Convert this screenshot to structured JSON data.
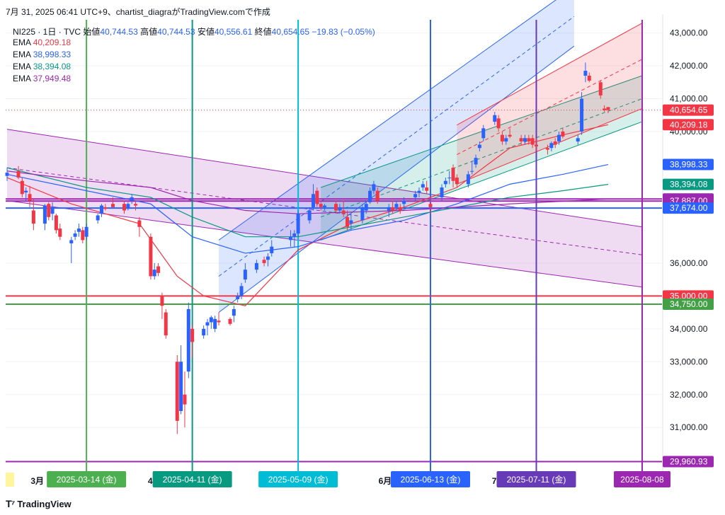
{
  "snapshot_header": "7月 31, 2025 06:41 UTC+9、chartist_diagraがTradingView.comで作成",
  "footer_brand": "TradingView",
  "legend": {
    "symbol": "NI225 · 1日 · TVC",
    "open_label": "始値",
    "open": "40,744.53",
    "high_label": "高値",
    "high": "40,744.53",
    "low_label": "安値",
    "low": "40,556.61",
    "close_label": "終値",
    "close": "40,654.65",
    "change": "−19.83 (−0.05%)",
    "ema": [
      {
        "label": "EMA",
        "value": "40,209.18",
        "color": "#f23645"
      },
      {
        "label": "EMA",
        "value": "38,998.33",
        "color": "#2962ff"
      },
      {
        "label": "EMA",
        "value": "38,394.08",
        "color": "#089981"
      },
      {
        "label": "EMA",
        "value": "37,949.48",
        "color": "#9c27b0"
      }
    ]
  },
  "colors": {
    "up": "#2962ff",
    "down": "#f23645",
    "grid": "#f0f3fa"
  },
  "chart_data": {
    "type": "candlestick",
    "x_start": "2025-02-21",
    "x_end": "2025-08-08",
    "y_axis_ticks": [
      "43,000.00",
      "42,000.00",
      "41,000.00",
      "40,000.00",
      "36,000.00",
      "35,000.00",
      "34,000.00",
      "33,000.00",
      "32,000.00",
      "31,000.00"
    ],
    "y_axis_tick_values": [
      43000,
      42000,
      41000,
      40000,
      36000,
      35000,
      34000,
      33000,
      32000,
      31000
    ],
    "ylim": [
      29800,
      43400
    ],
    "x_axis_labels": [
      {
        "date": "2025-03-01",
        "text": "3月"
      },
      {
        "date": "2025-04-01",
        "text": "4月"
      },
      {
        "date": "2025-06-01",
        "text": "6月"
      },
      {
        "date": "2025-07-01",
        "text": "7月"
      }
    ],
    "price_tags": [
      {
        "value": 40654.65,
        "text": "40,654.65",
        "color": "#f23645"
      },
      {
        "value": 40209.18,
        "text": "40,209.18",
        "color": "#f23645"
      },
      {
        "value": 38998.33,
        "text": "38,998.33",
        "color": "#2962ff"
      },
      {
        "value": 38394.08,
        "text": "38,394.08",
        "color": "#089981"
      },
      {
        "value": 37949.48,
        "text": "37,949.48",
        "color": "#9c27b0"
      },
      {
        "value": 37887.0,
        "text": "37,887.00",
        "color": "#9c27b0"
      },
      {
        "value": 37674.0,
        "text": "37,674.00",
        "color": "#2962ff"
      },
      {
        "value": 35000.0,
        "text": "35,000.00",
        "color": "#f23645"
      },
      {
        "value": 34750.0,
        "text": "34,750.00",
        "color": "#43a047"
      },
      {
        "value": 29960.93,
        "text": "29,960.93",
        "color": "#9c27b0"
      }
    ],
    "horizontal_lines": [
      {
        "value": 37949.48,
        "color": "#9c27b0"
      },
      {
        "value": 37887.0,
        "color": "#9c27b0"
      },
      {
        "value": 37674.0,
        "color": "#2962ff"
      },
      {
        "value": 35000.0,
        "color": "#f23645"
      },
      {
        "value": 34750.0,
        "color": "#43a047"
      },
      {
        "value": 29960.93,
        "color": "#9c27b0"
      }
    ],
    "vertical_lines": [
      {
        "date": "2025-03-14",
        "text": "2025-03-14 (金)",
        "color": "#4caf50"
      },
      {
        "date": "2025-04-11",
        "text": "2025-04-11 (金)",
        "color": "#089981"
      },
      {
        "date": "2025-05-09",
        "text": "2025-05-09 (金)",
        "color": "#00bcd4"
      },
      {
        "date": "2025-06-13",
        "text": "2025-06-13 (金)",
        "color": "#2962ff"
      },
      {
        "date": "2025-07-11",
        "text": "2025-07-11 (金)",
        "color": "#673ab7"
      },
      {
        "date": "2025-08-08",
        "text": "2025-08-08",
        "color": "#9c27b0"
      }
    ],
    "channels": [
      {
        "name": "purple",
        "color": "#9c27b0",
        "start": "2025-02-21",
        "end": "2025-08-08",
        "upper": [
          40070,
          37100
        ],
        "mid": [
          38900,
          36250
        ],
        "lower": [
          37900,
          35270
        ]
      },
      {
        "name": "blue",
        "color": "#2962ff",
        "start": "2025-04-18",
        "end": "2025-07-21",
        "upper": [
          36700,
          44400
        ],
        "mid": [
          35600,
          43500
        ],
        "lower": [
          34500,
          42600
        ]
      },
      {
        "name": "green",
        "color": "#089981",
        "start": "2025-05-15",
        "end": "2025-08-08",
        "upper": [
          38300,
          41700
        ],
        "mid": [
          37400,
          41000
        ],
        "lower": [
          36700,
          40300
        ]
      },
      {
        "name": "red",
        "color": "#f23645",
        "start": "2025-06-20",
        "end": "2025-08-08",
        "upper": [
          40200,
          43300
        ],
        "mid": [
          39300,
          42200
        ],
        "lower": [
          38400,
          40700
        ]
      }
    ],
    "candles": [
      [
        "2025-02-21",
        38650,
        38900,
        38500,
        38750
      ],
      [
        "2025-02-24",
        38800,
        38950,
        38550,
        38600
      ],
      [
        "2025-02-25",
        38500,
        38600,
        38000,
        38100
      ],
      [
        "2025-02-26",
        38150,
        38300,
        37900,
        38200
      ],
      [
        "2025-02-27",
        38100,
        38350,
        37700,
        37900
      ],
      [
        "2025-02-28",
        37600,
        37950,
        37000,
        37200
      ],
      [
        "2025-03-03",
        37200,
        37800,
        37000,
        37750
      ],
      [
        "2025-03-04",
        37800,
        37850,
        37300,
        37400
      ],
      [
        "2025-03-05",
        37500,
        37850,
        37300,
        37700
      ],
      [
        "2025-03-06",
        37450,
        37500,
        36900,
        37000
      ],
      [
        "2025-03-07",
        37050,
        37200,
        36700,
        36800
      ],
      [
        "2025-03-10",
        36600,
        36800,
        36000,
        36700
      ],
      [
        "2025-03-11",
        36800,
        37000,
        36700,
        36900
      ],
      [
        "2025-03-12",
        36950,
        37200,
        36800,
        37050
      ],
      [
        "2025-03-13",
        37000,
        37100,
        36600,
        36700
      ],
      [
        "2025-03-14",
        36800,
        37200,
        36700,
        37100
      ],
      [
        "2025-03-17",
        37300,
        37500,
        37200,
        37450
      ],
      [
        "2025-03-18",
        37500,
        37800,
        37400,
        37750
      ],
      [
        "2025-03-19",
        37700,
        37800,
        37600,
        37650
      ],
      [
        "2025-03-21",
        37800,
        38000,
        37750,
        37700
      ],
      [
        "2025-03-24",
        37800,
        37900,
        37500,
        37600
      ],
      [
        "2025-03-25",
        37650,
        37850,
        37600,
        37800
      ],
      [
        "2025-03-26",
        37900,
        38100,
        37800,
        38000
      ],
      [
        "2025-03-27",
        37800,
        37900,
        37600,
        37750
      ],
      [
        "2025-03-28",
        37300,
        37400,
        36800,
        37100
      ],
      [
        "2025-03-31",
        36800,
        36900,
        35500,
        35600
      ],
      [
        "2025-04-01",
        35600,
        36000,
        35500,
        35800
      ],
      [
        "2025-04-02",
        35900,
        36000,
        35600,
        35700
      ],
      [
        "2025-04-03",
        35000,
        35100,
        34300,
        34700
      ],
      [
        "2025-04-04",
        34500,
        34600,
        33700,
        33800
      ],
      [
        "2025-04-07",
        33000,
        33200,
        30800,
        31200
      ],
      [
        "2025-04-08",
        31500,
        33500,
        31400,
        33000
      ],
      [
        "2025-04-09",
        32000,
        32700,
        31000,
        31700
      ],
      [
        "2025-04-10",
        32700,
        34800,
        32500,
        34600
      ],
      [
        "2025-04-11",
        34000,
        34100,
        33100,
        33600
      ],
      [
        "2025-04-14",
        33800,
        34100,
        33700,
        34000
      ],
      [
        "2025-04-15",
        34100,
        34300,
        33800,
        34200
      ],
      [
        "2025-04-16",
        34200,
        34400,
        34000,
        34350
      ],
      [
        "2025-04-17",
        34000,
        34400,
        33900,
        34300
      ],
      [
        "2025-04-18",
        34250,
        34500,
        34100,
        34200
      ],
      [
        "2025-04-21",
        34300,
        34350,
        34100,
        34150
      ],
      [
        "2025-04-22",
        34400,
        34700,
        34200,
        34600
      ],
      [
        "2025-04-23",
        34900,
        35100,
        34800,
        35000
      ],
      [
        "2025-04-24",
        35000,
        35400,
        34900,
        35300
      ],
      [
        "2025-04-25",
        35500,
        36000,
        35400,
        35800
      ],
      [
        "2025-04-28",
        35800,
        36100,
        35700,
        36000
      ],
      [
        "2025-04-30",
        36100,
        36200,
        35900,
        36000
      ],
      [
        "2025-05-01",
        36100,
        36300,
        35900,
        36200
      ],
      [
        "2025-05-02",
        36300,
        36700,
        36200,
        36500
      ],
      [
        "2025-05-07",
        36700,
        37000,
        36500,
        36800
      ],
      [
        "2025-05-08",
        36800,
        37000,
        36500,
        36900
      ],
      [
        "2025-05-09",
        36900,
        37600,
        36800,
        37500
      ],
      [
        "2025-05-12",
        37300,
        37700,
        37200,
        37600
      ],
      [
        "2025-05-13",
        37700,
        38400,
        37600,
        38100
      ],
      [
        "2025-05-14",
        38200,
        38300,
        37700,
        37800
      ],
      [
        "2025-05-15",
        37800,
        37900,
        37600,
        37700
      ],
      [
        "2025-05-16",
        37700,
        37800,
        37600,
        37750
      ],
      [
        "2025-05-19",
        37800,
        37900,
        37500,
        37600
      ],
      [
        "2025-05-20",
        37600,
        37800,
        37500,
        37700
      ],
      [
        "2025-05-21",
        37600,
        37900,
        37400,
        37500
      ],
      [
        "2025-05-22",
        37400,
        37600,
        37000,
        37100
      ],
      [
        "2025-05-23",
        37200,
        37500,
        37000,
        37300
      ],
      [
        "2025-05-26",
        37300,
        37800,
        37200,
        37700
      ],
      [
        "2025-05-27",
        37600,
        37900,
        37500,
        37800
      ],
      [
        "2025-05-28",
        37850,
        38300,
        37800,
        38200
      ],
      [
        "2025-05-29",
        38200,
        38500,
        38100,
        38400
      ],
      [
        "2025-05-30",
        38200,
        38300,
        37800,
        37900
      ],
      [
        "2025-06-02",
        37600,
        37800,
        37400,
        37700
      ],
      [
        "2025-06-03",
        37700,
        37900,
        37500,
        37600
      ],
      [
        "2025-06-04",
        37700,
        37900,
        37600,
        37800
      ],
      [
        "2025-06-05",
        37700,
        37800,
        37500,
        37600
      ],
      [
        "2025-06-06",
        37800,
        38000,
        37700,
        37900
      ],
      [
        "2025-06-09",
        38000,
        38200,
        37900,
        38100
      ],
      [
        "2025-06-10",
        38150,
        38300,
        38000,
        38200
      ],
      [
        "2025-06-11",
        38300,
        38500,
        38200,
        38400
      ],
      [
        "2025-06-12",
        38300,
        38500,
        38100,
        38200
      ],
      [
        "2025-06-13",
        37800,
        38000,
        37500,
        37700
      ],
      [
        "2025-06-16",
        38000,
        38400,
        37900,
        38300
      ],
      [
        "2025-06-17",
        38400,
        38600,
        38300,
        38500
      ],
      [
        "2025-06-18",
        38600,
        38800,
        38400,
        38600
      ],
      [
        "2025-06-19",
        38900,
        39000,
        38300,
        38500
      ],
      [
        "2025-06-20",
        38600,
        38700,
        38300,
        38400
      ],
      [
        "2025-06-23",
        38400,
        38800,
        38300,
        38700
      ],
      [
        "2025-06-24",
        38800,
        39100,
        38700,
        38800
      ],
      [
        "2025-06-25",
        39000,
        39300,
        38900,
        39200
      ],
      [
        "2025-06-26",
        39500,
        39700,
        39400,
        39600
      ],
      [
        "2025-06-27",
        39800,
        40200,
        39700,
        40100
      ],
      [
        "2025-06-30",
        40300,
        40600,
        40200,
        40500
      ],
      [
        "2025-07-01",
        40400,
        40500,
        40000,
        40100
      ],
      [
        "2025-07-02",
        39900,
        40000,
        39600,
        39700
      ],
      [
        "2025-07-03",
        39700,
        39900,
        39600,
        39800
      ],
      [
        "2025-07-04",
        39900,
        40100,
        39800,
        39850
      ],
      [
        "2025-07-07",
        39800,
        39900,
        39600,
        39700
      ],
      [
        "2025-07-08",
        39700,
        39900,
        39600,
        39800
      ],
      [
        "2025-07-09",
        39800,
        39900,
        39600,
        39700
      ],
      [
        "2025-07-10",
        39800,
        39900,
        39500,
        39600
      ],
      [
        "2025-07-11",
        39600,
        39800,
        39400,
        39550
      ],
      [
        "2025-07-14",
        39500,
        39600,
        39300,
        39450
      ],
      [
        "2025-07-15",
        39500,
        39700,
        39400,
        39650
      ],
      [
        "2025-07-16",
        39700,
        39800,
        39500,
        39600
      ],
      [
        "2025-07-17",
        39700,
        40000,
        39600,
        39900
      ],
      [
        "2025-07-18",
        40000,
        40100,
        39800,
        39850
      ],
      [
        "2025-07-22",
        39700,
        39900,
        39600,
        39800
      ],
      [
        "2025-07-23",
        40000,
        41200,
        39900,
        41000
      ],
      [
        "2025-07-24",
        41700,
        42100,
        41500,
        41850
      ],
      [
        "2025-07-25",
        41700,
        41800,
        41500,
        41550
      ],
      [
        "2025-07-28",
        41500,
        41550,
        41000,
        41100
      ],
      [
        "2025-07-29",
        40700,
        40800,
        40600,
        40650
      ],
      [
        "2025-07-30",
        40745,
        40745,
        40557,
        40655
      ]
    ],
    "ema_series": [
      {
        "name": "EMA",
        "color": "#f23645",
        "dates": [
          "2025-02-21",
          "2025-03-10",
          "2025-03-28",
          "2025-04-07",
          "2025-04-14",
          "2025-04-25",
          "2025-05-09",
          "2025-05-23",
          "2025-06-06",
          "2025-06-20",
          "2025-07-04",
          "2025-07-18",
          "2025-07-30"
        ],
        "values": [
          38600,
          37800,
          37200,
          35600,
          35000,
          34700,
          36400,
          37200,
          37700,
          38300,
          39500,
          39900,
          40209
        ]
      },
      {
        "name": "EMA",
        "color": "#2962ff",
        "dates": [
          "2025-02-21",
          "2025-03-14",
          "2025-03-31",
          "2025-04-11",
          "2025-04-25",
          "2025-05-09",
          "2025-05-23",
          "2025-06-06",
          "2025-06-20",
          "2025-07-04",
          "2025-07-18",
          "2025-07-30"
        ],
        "values": [
          38700,
          38200,
          37800,
          36800,
          36300,
          36500,
          37000,
          37300,
          37800,
          38400,
          38700,
          38998
        ]
      },
      {
        "name": "EMA",
        "color": "#089981",
        "dates": [
          "2025-02-21",
          "2025-03-14",
          "2025-03-31",
          "2025-04-11",
          "2025-04-25",
          "2025-05-09",
          "2025-05-23",
          "2025-06-06",
          "2025-06-20",
          "2025-07-04",
          "2025-07-18",
          "2025-07-30"
        ],
        "values": [
          38900,
          38300,
          38000,
          37400,
          36800,
          36800,
          37100,
          37400,
          37700,
          38000,
          38200,
          38394
        ]
      },
      {
        "name": "EMA",
        "color": "#9c27b0",
        "dates": [
          "2025-02-21",
          "2025-03-14",
          "2025-03-31",
          "2025-04-11",
          "2025-04-25",
          "2025-05-09",
          "2025-05-23",
          "2025-06-06",
          "2025-06-20",
          "2025-07-04",
          "2025-07-18",
          "2025-07-30"
        ],
        "values": [
          38800,
          38500,
          38300,
          37900,
          37600,
          37500,
          37550,
          37600,
          37700,
          37800,
          37880,
          37949
        ]
      }
    ]
  }
}
